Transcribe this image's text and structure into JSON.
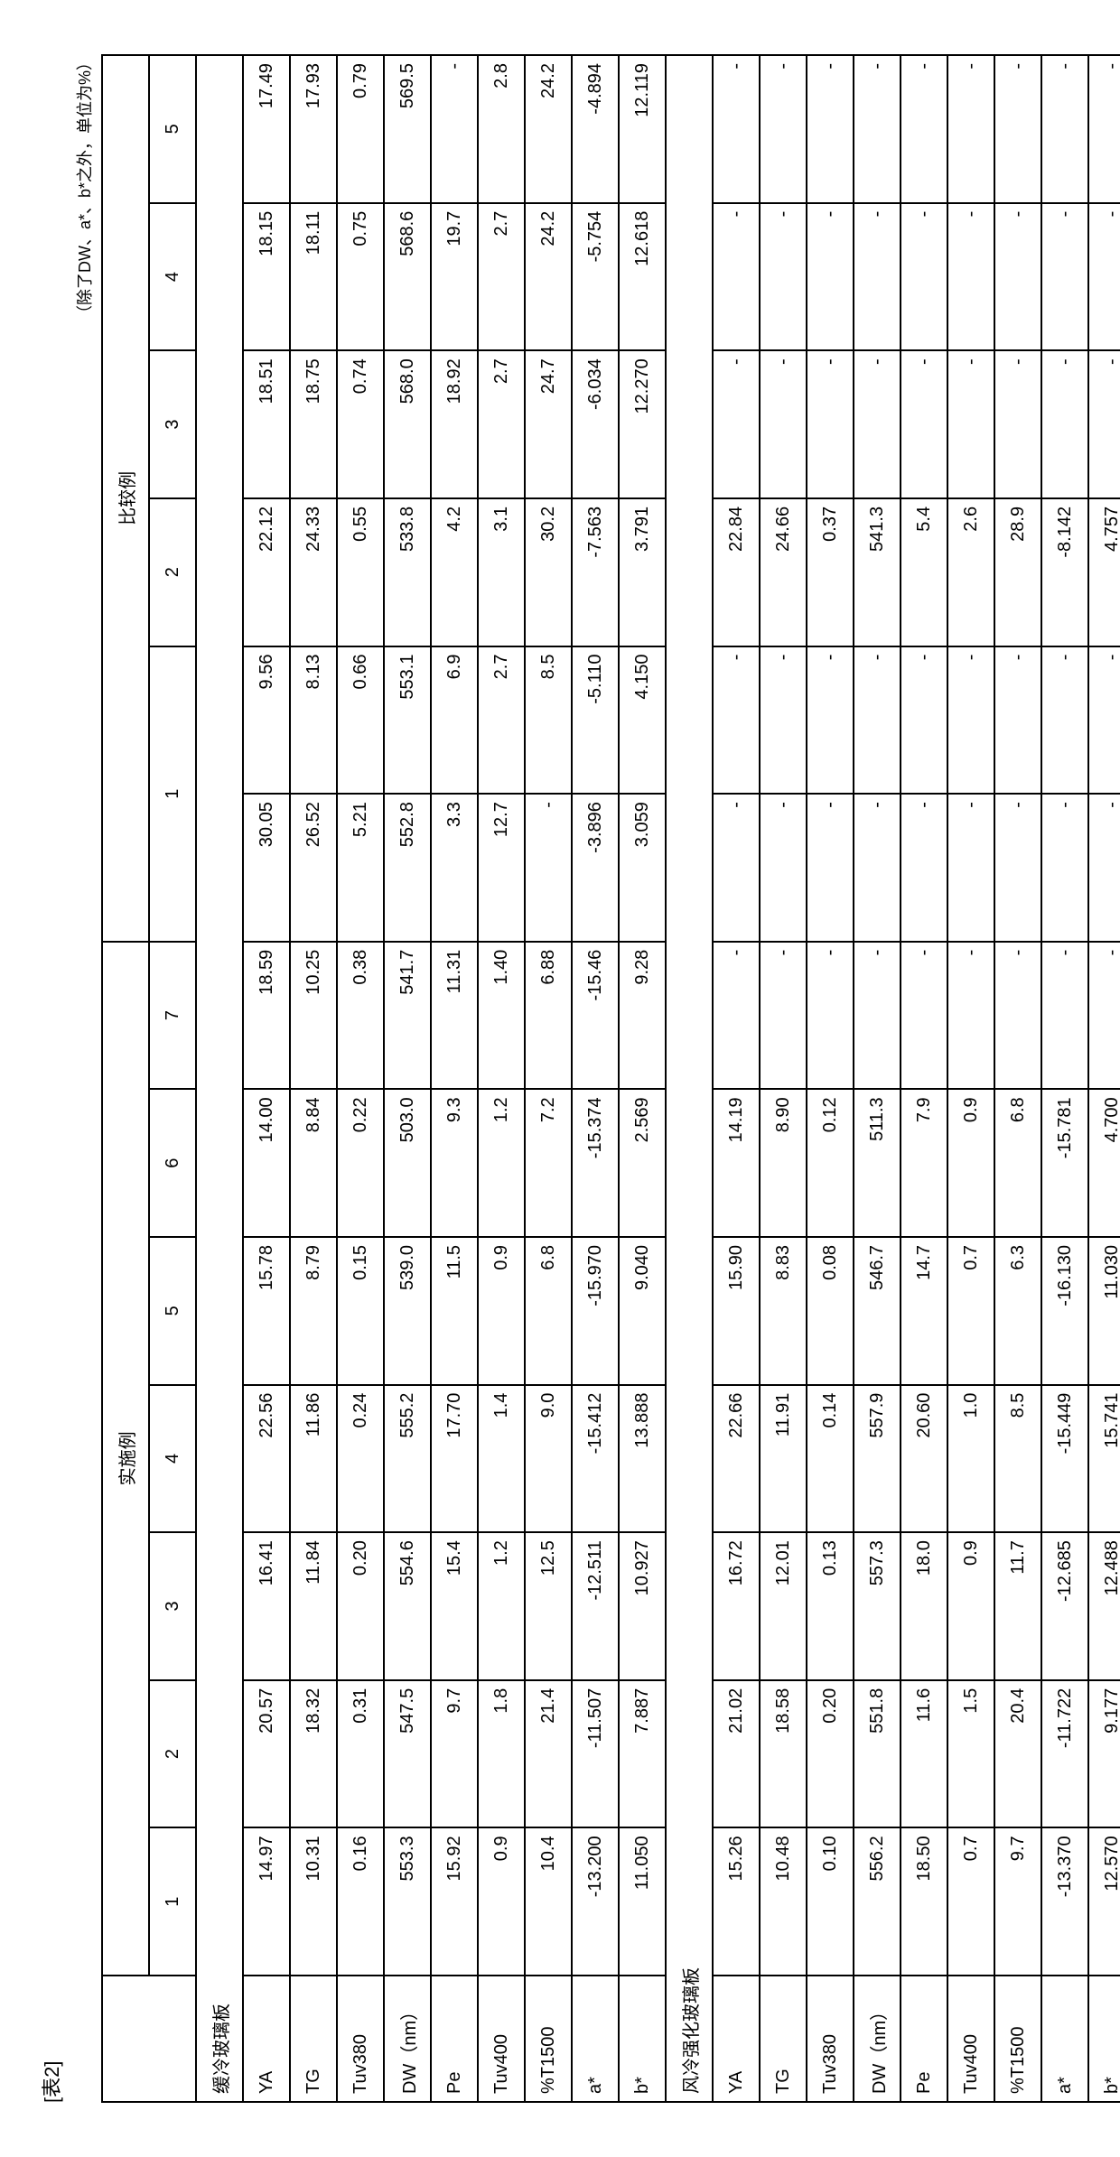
{
  "labels": {
    "tableName": "[表2]",
    "note": "（除了DW、a*、b*之外，单位为%）",
    "groupExample": "实施例",
    "groupCompare": "比较例",
    "section1": "缓冷玻璃板",
    "section2": "风冷强化玻璃板"
  },
  "cols": {
    "ex": [
      "1",
      "2",
      "3",
      "4",
      "5",
      "6",
      "7"
    ],
    "cmp": [
      "1",
      "",
      "2",
      "3",
      "4",
      "5"
    ]
  },
  "rowLabels": [
    "YA",
    "TG",
    "Tuv380",
    "DW（nm）",
    "Pe",
    "Tuv400",
    "%T1500",
    "a*",
    "b*"
  ],
  "section1": [
    [
      "14.97",
      "20.57",
      "16.41",
      "22.56",
      "15.78",
      "14.00",
      "18.59",
      "30.05",
      "9.56",
      "22.12",
      "18.51",
      "18.15",
      "17.49"
    ],
    [
      "10.31",
      "18.32",
      "11.84",
      "11.86",
      "8.79",
      "8.84",
      "10.25",
      "26.52",
      "8.13",
      "24.33",
      "18.75",
      "18.11",
      "17.93"
    ],
    [
      "0.16",
      "0.31",
      "0.20",
      "0.24",
      "0.15",
      "0.22",
      "0.38",
      "5.21",
      "0.66",
      "0.55",
      "0.74",
      "0.75",
      "0.79"
    ],
    [
      "553.3",
      "547.5",
      "554.6",
      "555.2",
      "539.0",
      "503.0",
      "541.7",
      "552.8",
      "553.1",
      "533.8",
      "568.0",
      "568.6",
      "569.5"
    ],
    [
      "15.92",
      "9.7",
      "15.4",
      "17.70",
      "11.5",
      "9.3",
      "11.31",
      "3.3",
      "6.9",
      "4.2",
      "18.92",
      "19.7",
      "-"
    ],
    [
      "0.9",
      "1.8",
      "1.2",
      "1.4",
      "0.9",
      "1.2",
      "1.40",
      "12.7",
      "2.7",
      "3.1",
      "2.7",
      "2.7",
      "2.8"
    ],
    [
      "10.4",
      "21.4",
      "12.5",
      "9.0",
      "6.8",
      "7.2",
      "6.88",
      "-",
      "8.5",
      "30.2",
      "24.7",
      "24.2",
      "24.2"
    ],
    [
      "-13.200",
      "-11.507",
      "-12.511",
      "-15.412",
      "-15.970",
      "-15.374",
      "-15.46",
      "-3.896",
      "-5.110",
      "-7.563",
      "-6.034",
      "-5.754",
      "-4.894"
    ],
    [
      "11.050",
      "7.887",
      "10.927",
      "13.888",
      "9.040",
      "2.569",
      "9.28",
      "3.059",
      "4.150",
      "3.791",
      "12.270",
      "12.618",
      "12.119"
    ]
  ],
  "section2": [
    [
      "15.26",
      "21.02",
      "16.72",
      "22.66",
      "15.90",
      "14.19",
      "-",
      "-",
      "-",
      "22.84",
      "-",
      "-",
      "-"
    ],
    [
      "10.48",
      "18.58",
      "12.01",
      "11.91",
      "8.83",
      "8.90",
      "-",
      "-",
      "-",
      "24.66",
      "-",
      "-",
      "-"
    ],
    [
      "0.10",
      "0.20",
      "0.13",
      "0.14",
      "0.08",
      "0.12",
      "-",
      "-",
      "-",
      "0.37",
      "-",
      "-",
      "-"
    ],
    [
      "556.2",
      "551.8",
      "557.3",
      "557.9",
      "546.7",
      "511.3",
      "-",
      "-",
      "-",
      "541.3",
      "-",
      "-",
      "-"
    ],
    [
      "18.50",
      "11.6",
      "18.0",
      "20.60",
      "14.7",
      "7.9",
      "-",
      "-",
      "-",
      "5.4",
      "-",
      "-",
      "-"
    ],
    [
      "0.7",
      "1.5",
      "0.9",
      "1.0",
      "0.7",
      "0.9",
      "-",
      "-",
      "-",
      "2.6",
      "-",
      "-",
      "-"
    ],
    [
      "9.7",
      "20.4",
      "11.7",
      "8.5",
      "6.3",
      "6.8",
      "-",
      "-",
      "-",
      "28.9",
      "-",
      "-",
      "-"
    ],
    [
      "-13.370",
      "-11.722",
      "-12.685",
      "-15.449",
      "-16.130",
      "-15.781",
      "-",
      "-",
      "-",
      "-8.142",
      "-",
      "-",
      "-"
    ],
    [
      "12.570",
      "9.177",
      "12.488",
      "15.741",
      "11.030",
      "4.700",
      "-",
      "-",
      "-",
      "4.757",
      "-",
      "-",
      "-"
    ]
  ]
}
